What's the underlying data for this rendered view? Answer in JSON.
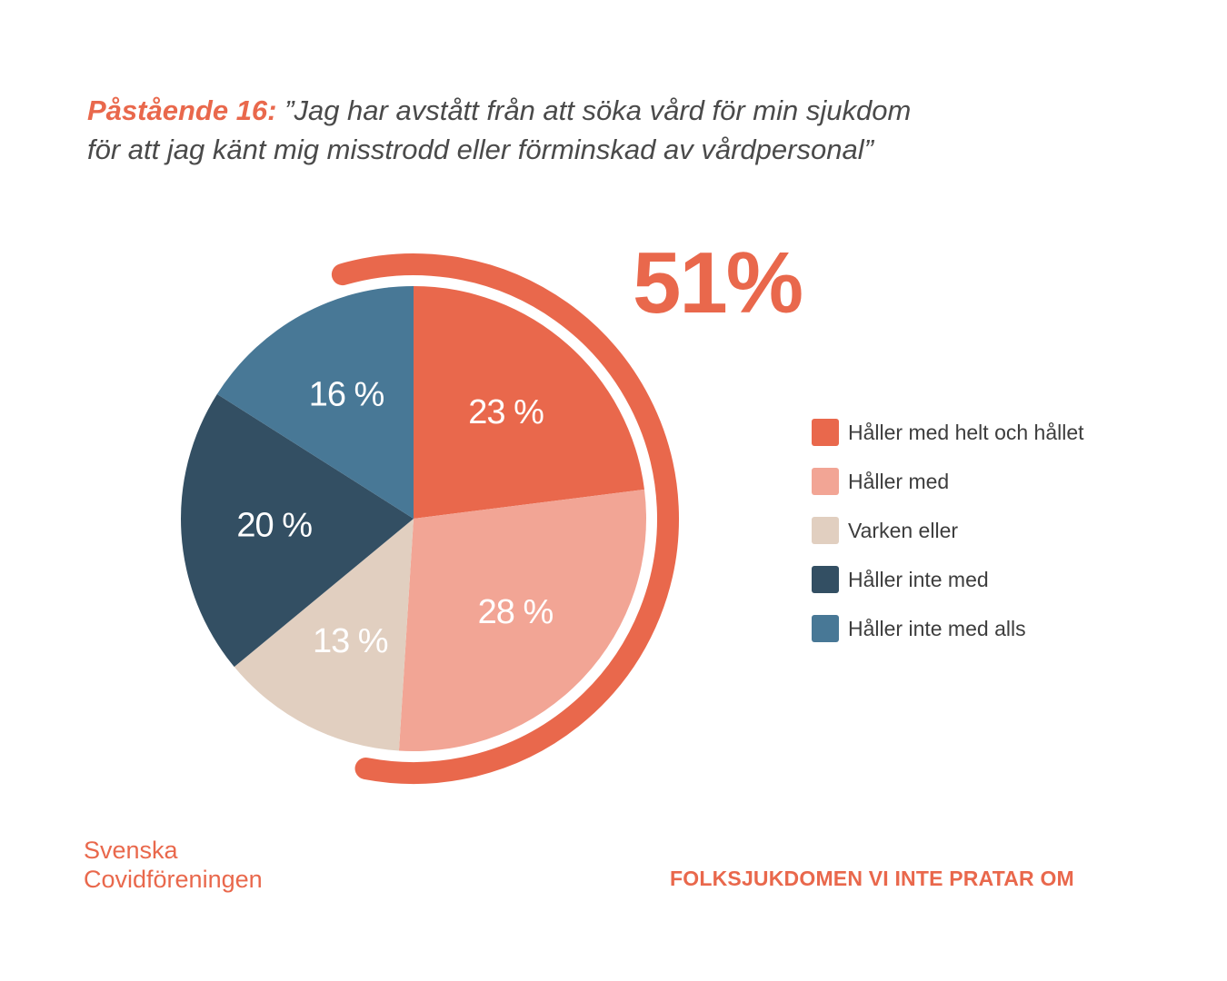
{
  "heading": {
    "prefix": "Påstående 16:",
    "line1": "”Jag har avstått från att söka vård för min sjukdom",
    "line2": "för att jag känt mig misstrodd eller förminskad av vårdpersonal”"
  },
  "highlight": {
    "label": "51%",
    "color": "#e9684c"
  },
  "chart_data": {
    "type": "pie",
    "categories": [
      "Håller med helt och hållet",
      "Håller med",
      "Varken eller",
      "Håller inte med",
      "Håller inte med alls"
    ],
    "values": [
      23,
      28,
      13,
      20,
      16
    ],
    "value_labels": [
      "23 %",
      "28 %",
      "13 %",
      "20 %",
      "16 %"
    ],
    "colors": [
      "#e9684c",
      "#f2a595",
      "#e1cfc0",
      "#334f63",
      "#487896"
    ],
    "legend_position": "right",
    "highlight_arc": {
      "covers": [
        "Håller med helt och hållet",
        "Håller med"
      ],
      "total_percent": 51
    }
  },
  "legend": {
    "items": [
      {
        "label": "Håller med helt och hållet",
        "color": "#e9684c"
      },
      {
        "label": "Håller med",
        "color": "#f2a595"
      },
      {
        "label": "Varken eller",
        "color": "#e1cfc0"
      },
      {
        "label": "Håller inte med",
        "color": "#334f63"
      },
      {
        "label": "Håller inte med alls",
        "color": "#487896"
      }
    ]
  },
  "footer": {
    "org_line1": "Svenska",
    "org_line2": "Covidföreningen",
    "tagline": "FOLKSJUKDOMEN VI INTE PRATAR OM"
  }
}
